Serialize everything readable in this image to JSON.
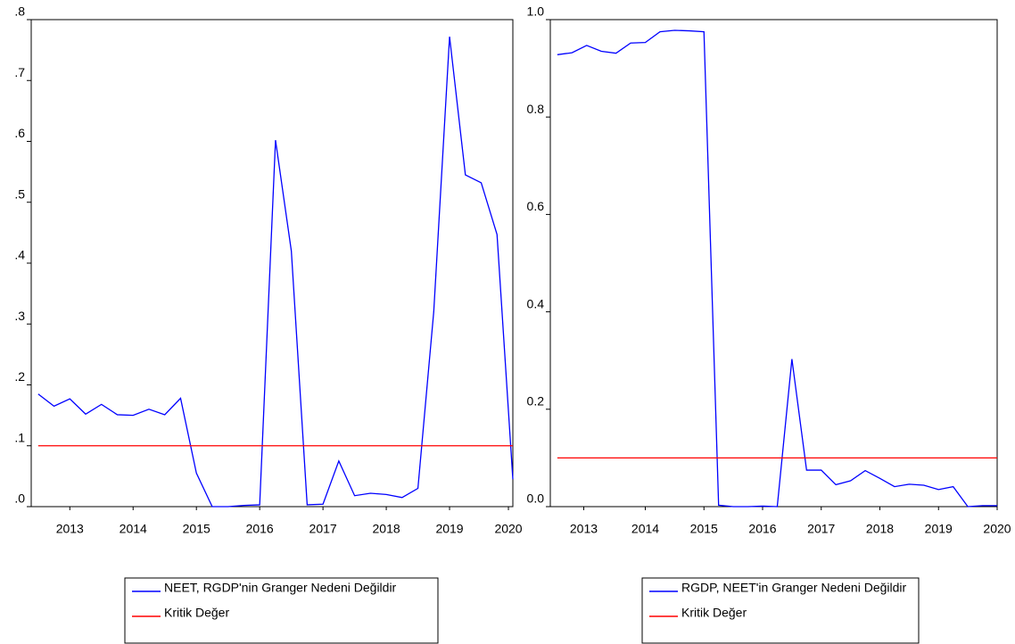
{
  "chart_data": [
    {
      "type": "line",
      "x": [
        2013,
        2013.25,
        2013.5,
        2013.75,
        2014,
        2014.25,
        2014.5,
        2014.75,
        2015,
        2015.25,
        2015.5,
        2015.75,
        2016,
        2016.25,
        2016.5,
        2016.75,
        2017,
        2017.25,
        2017.5,
        2017.75,
        2018,
        2018.25,
        2018.5,
        2018.75,
        2019,
        2019.25,
        2019.5,
        2019.75,
        2020,
        2020.25,
        2020.5
      ],
      "xlim": [
        2012.89,
        2020.5
      ],
      "xticks": [
        {
          "value": 2013.5,
          "label": "2013"
        },
        {
          "value": 2014.5,
          "label": "2014"
        },
        {
          "value": 2015.5,
          "label": "2015"
        },
        {
          "value": 2016.5,
          "label": "2016"
        },
        {
          "value": 2017.5,
          "label": "2017"
        },
        {
          "value": 2018.5,
          "label": "2018"
        },
        {
          "value": 2019.5,
          "label": "2019"
        },
        {
          "value": 2020.43,
          "label": "2020"
        }
      ],
      "ylim": [
        0,
        0.8
      ],
      "yticks": [
        {
          "value": 0,
          "label": ".0"
        },
        {
          "value": 0.1,
          "label": ".1"
        },
        {
          "value": 0.2,
          "label": ".2"
        },
        {
          "value": 0.3,
          "label": ".3"
        },
        {
          "value": 0.4,
          "label": ".4"
        },
        {
          "value": 0.5,
          "label": ".5"
        },
        {
          "value": 0.6,
          "label": ".6"
        },
        {
          "value": 0.7,
          "label": ".7"
        },
        {
          "value": 0.8,
          "label": ".8"
        }
      ],
      "legend": "bottom",
      "series": [
        {
          "name": "NEET, RGDP'nin Granger Nedeni Değildir",
          "color": "#0000ff",
          "values": [
            0.185,
            0.165,
            0.177,
            0.152,
            0.168,
            0.151,
            0.15,
            0.16,
            0.151,
            0.178,
            0.055,
            0.0,
            0.0,
            0.002,
            0.003,
            0.602,
            0.42,
            0.003,
            0.004,
            0.075,
            0.018,
            0.022,
            0.02,
            0.015,
            0.03,
            0.32,
            0.772,
            0.545,
            0.532,
            0.447,
            0.045
          ]
        },
        {
          "name": "Kritik Değer",
          "color": "#ff0000",
          "values": [
            0.1,
            0.1,
            0.1,
            0.1,
            0.1,
            0.1,
            0.1,
            0.1,
            0.1,
            0.1,
            0.1,
            0.1,
            0.1,
            0.1,
            0.1,
            0.1,
            0.1,
            0.1,
            0.1,
            0.1,
            0.1,
            0.1,
            0.1,
            0.1,
            0.1,
            0.1,
            0.1,
            0.1,
            0.1,
            0.1,
            0.1
          ]
        }
      ]
    },
    {
      "type": "line",
      "x": [
        2013,
        2013.25,
        2013.5,
        2013.75,
        2014,
        2014.25,
        2014.5,
        2014.75,
        2015,
        2015.25,
        2015.5,
        2015.75,
        2016,
        2016.25,
        2016.5,
        2016.75,
        2017,
        2017.25,
        2017.5,
        2017.75,
        2018,
        2018.25,
        2018.5,
        2018.75,
        2019,
        2019.25,
        2019.5,
        2019.75,
        2020,
        2020.25,
        2020.5
      ],
      "xlim": [
        2012.88,
        2020.5
      ],
      "xticks": [
        {
          "value": 2013.45,
          "label": "2013"
        },
        {
          "value": 2014.5,
          "label": "2014"
        },
        {
          "value": 2015.5,
          "label": "2015"
        },
        {
          "value": 2016.5,
          "label": "2016"
        },
        {
          "value": 2017.5,
          "label": "2017"
        },
        {
          "value": 2018.5,
          "label": "2018"
        },
        {
          "value": 2019.5,
          "label": "2019"
        },
        {
          "value": 2020.5,
          "label": "2020"
        }
      ],
      "ylim": [
        0,
        1
      ],
      "yticks": [
        {
          "value": 0,
          "label": "0.0"
        },
        0.2,
        0.4,
        0.6,
        0.8,
        {
          "value": 1,
          "label": "1.0"
        }
      ],
      "legend": "bottom",
      "series": [
        {
          "name": "RGDP, NEET'in Granger Nedeni Değildir",
          "color": "#0000ff",
          "values": [
            0.928,
            0.932,
            0.947,
            0.935,
            0.931,
            0.952,
            0.953,
            0.975,
            0.978,
            0.977,
            0.975,
            0.003,
            0.0,
            0.0,
            0.001,
            0.0,
            0.303,
            0.075,
            0.075,
            0.045,
            0.053,
            0.074,
            0.058,
            0.041,
            0.046,
            0.044,
            0.035,
            0.041,
            0.0,
            0.002,
            0.002
          ]
        },
        {
          "name": "Kritik Değer",
          "color": "#ff0000",
          "values": [
            0.1,
            0.1,
            0.1,
            0.1,
            0.1,
            0.1,
            0.1,
            0.1,
            0.1,
            0.1,
            0.1,
            0.1,
            0.1,
            0.1,
            0.1,
            0.1,
            0.1,
            0.1,
            0.1,
            0.1,
            0.1,
            0.1,
            0.1,
            0.1,
            0.1,
            0.1,
            0.1,
            0.1,
            0.1,
            0.1,
            0.1
          ]
        }
      ]
    }
  ]
}
